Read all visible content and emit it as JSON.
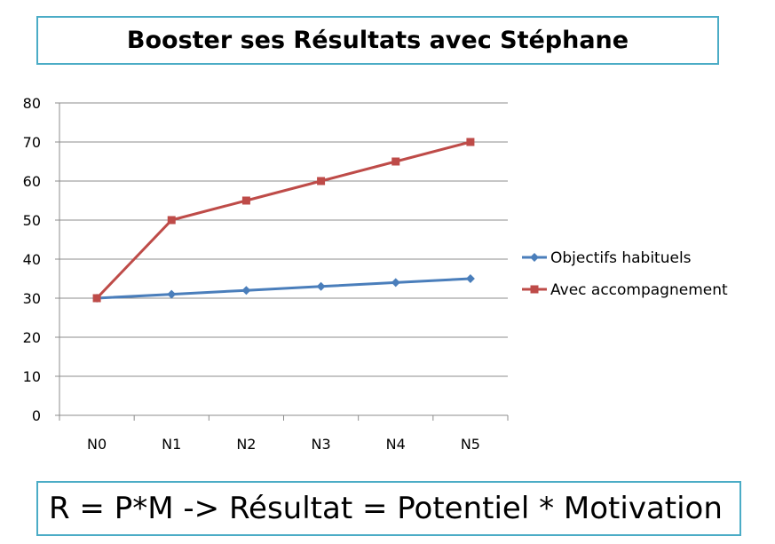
{
  "title": "Booster ses Résultats avec Stéphane",
  "formula": "R = P*M -> Résultat = Potentiel * Motivation",
  "chart_data": {
    "type": "line",
    "categories": [
      "N0",
      "N1",
      "N2",
      "N3",
      "N4",
      "N5"
    ],
    "series": [
      {
        "name": "Objectifs habituels",
        "values": [
          30,
          31,
          32,
          33,
          34,
          35
        ],
        "color": "#4a7ebb",
        "marker": "diamond"
      },
      {
        "name": "Avec accompagnement",
        "values": [
          30,
          50,
          55,
          60,
          65,
          70
        ],
        "color": "#be4b48",
        "marker": "square"
      }
    ],
    "yticks": [
      0,
      10,
      20,
      30,
      40,
      50,
      60,
      70,
      80
    ],
    "ylim": [
      0,
      80
    ],
    "grid": true,
    "legend": "right"
  }
}
